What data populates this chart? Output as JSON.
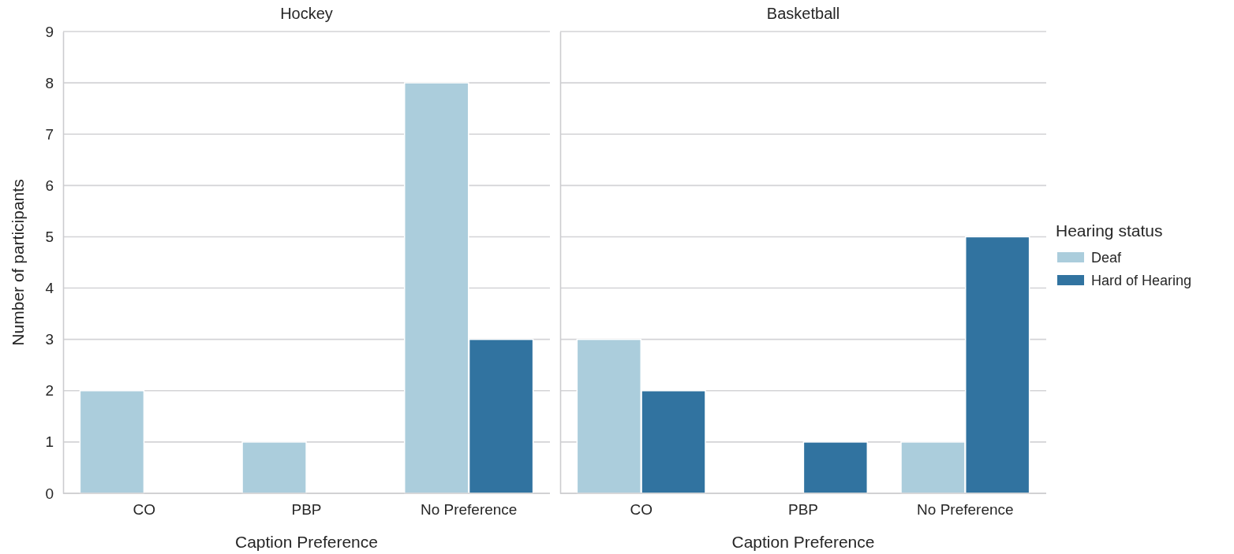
{
  "chart_data": [
    {
      "type": "bar",
      "title": "Hockey",
      "xlabel": "Caption Preference",
      "ylabel": "Number of participants",
      "categories": [
        "CO",
        "PBP",
        "No Preference"
      ],
      "series": [
        {
          "color": "#abcddc",
          "values": [
            2,
            1,
            8
          ]
        },
        {
          "color": "#3173a0",
          "values": [
            0,
            0,
            3
          ]
        }
      ],
      "ylim": [
        0,
        9
      ],
      "yticks": [
        0,
        1,
        2,
        3,
        4,
        5,
        6,
        7,
        8,
        9
      ],
      "grid": "y",
      "legend": false
    },
    {
      "type": "bar",
      "title": "Basketball",
      "xlabel": "Caption Preference",
      "categories": [
        "CO",
        "PBP",
        "No Preference"
      ],
      "series": [
        {
          "name": "Deaf",
          "color": "#abcddc",
          "values": [
            3,
            0,
            1
          ]
        },
        {
          "name": "Hard of Hearing",
          "color": "#3173a0",
          "values": [
            2,
            1,
            5
          ]
        }
      ],
      "ylim": [
        0,
        9
      ],
      "yticks": [
        0,
        1,
        2,
        3,
        4,
        5,
        6,
        7,
        8,
        9
      ],
      "grid": "y",
      "tick_labels": "x",
      "legend": "right",
      "legend_title": "Hearing status"
    }
  ]
}
